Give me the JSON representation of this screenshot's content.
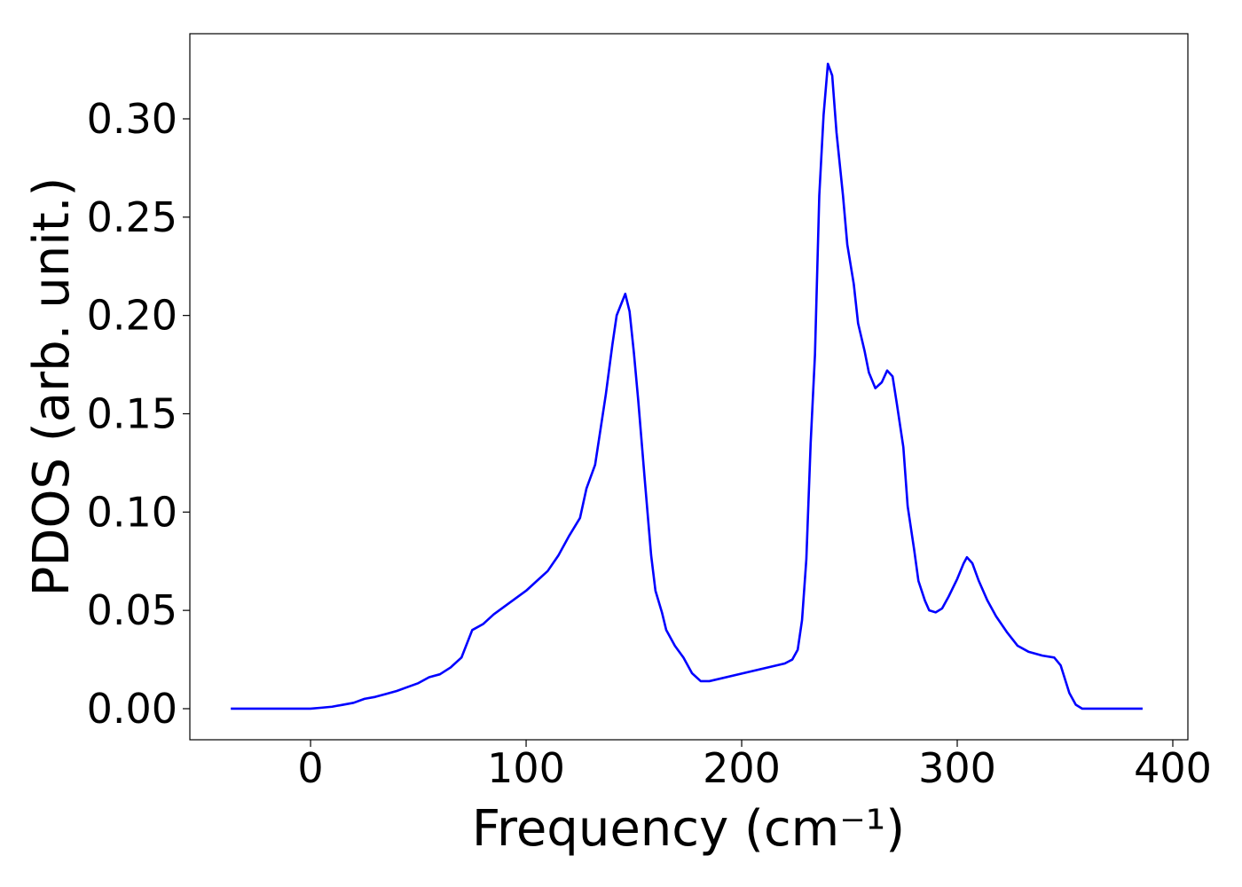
{
  "chart_data": {
    "type": "line",
    "xlabel": "Frequency (cm⁻¹)",
    "ylabel": "PDOS (arb. unit.)",
    "x": [
      -37,
      0,
      5,
      10,
      15,
      20,
      25,
      30,
      35,
      40,
      45,
      50,
      55,
      60,
      65,
      70,
      75,
      80,
      85,
      90,
      95,
      100,
      105,
      110,
      115,
      120,
      125,
      128,
      132,
      137,
      140,
      142,
      146,
      148,
      150,
      152,
      155,
      158,
      160,
      163,
      165,
      169,
      173,
      177,
      181,
      185,
      220,
      223.5,
      226,
      228,
      230,
      232,
      234,
      236,
      238,
      240,
      242,
      244,
      247,
      249,
      252,
      254,
      257,
      259,
      262,
      265,
      267.5,
      270,
      272,
      275,
      277,
      280,
      282,
      285,
      287,
      290,
      293,
      296,
      300,
      303,
      304.5,
      307,
      310,
      314,
      318,
      323,
      328,
      333,
      339.5,
      345,
      348,
      350,
      352,
      355,
      358,
      386
    ],
    "series": [
      {
        "name": "PDOS",
        "color": "#0000ff",
        "values": [
          0,
          0,
          0.0005,
          0.001,
          0.002,
          0.003,
          0.005,
          0.006,
          0.0075,
          0.009,
          0.011,
          0.013,
          0.016,
          0.0175,
          0.021,
          0.026,
          0.04,
          0.043,
          0.048,
          0.052,
          0.056,
          0.06,
          0.065,
          0.07,
          0.078,
          0.088,
          0.097,
          0.112,
          0.124,
          0.16,
          0.185,
          0.2,
          0.211,
          0.202,
          0.181,
          0.157,
          0.117,
          0.078,
          0.06,
          0.049,
          0.04,
          0.032,
          0.026,
          0.018,
          0.014,
          0.014,
          0.023,
          0.025,
          0.03,
          0.045,
          0.076,
          0.135,
          0.18,
          0.261,
          0.302,
          0.328,
          0.322,
          0.293,
          0.261,
          0.236,
          0.216,
          0.196,
          0.182,
          0.171,
          0.163,
          0.166,
          0.172,
          0.169,
          0.155,
          0.133,
          0.103,
          0.081,
          0.065,
          0.055,
          0.05,
          0.049,
          0.051,
          0.057,
          0.066,
          0.074,
          0.077,
          0.074,
          0.065,
          0.055,
          0.047,
          0.039,
          0.032,
          0.029,
          0.027,
          0.026,
          0.022,
          0.015,
          0.008,
          0.002,
          0,
          0
        ]
      }
    ],
    "xlim": [
      -56,
      407
    ],
    "ylim": [
      -0.0158,
      0.3433
    ],
    "xticks": [
      0,
      100,
      200,
      300,
      400
    ],
    "yticks": [
      {
        "value": 0,
        "label": "0.00"
      },
      0.05,
      {
        "value": 0.1,
        "label": "0.10"
      },
      0.15,
      {
        "value": 0.2,
        "label": "0.20"
      },
      0.25,
      {
        "value": 0.3,
        "label": "0.30"
      }
    ],
    "grid": false
  }
}
